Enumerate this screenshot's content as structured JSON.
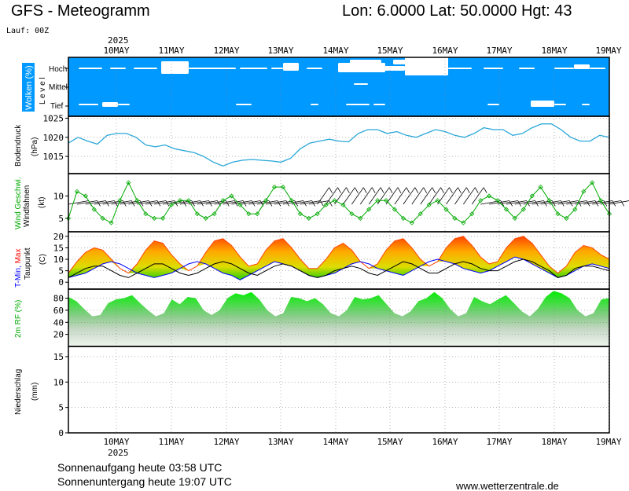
{
  "header": {
    "title": "GFS - Meteogramm",
    "location": "Lon: 6.0000 Lat: 50.0000 Hgt: 43",
    "run": "Lauf: 00Z"
  },
  "footer": {
    "sunrise": "Sonnenaufgang heute 03:58 UTC",
    "sunset": "Sonnenuntergang heute 19:07 UTC",
    "source": "www.wetterzentrale.de"
  },
  "chart_data": [
    {
      "type": "heatmap",
      "panel": "clouds",
      "ylabel": "Wolken (%)",
      "level_label": "L e v e l",
      "levels": [
        "Hoch",
        "Mittel",
        "Tief"
      ],
      "x_labels": [
        "10MAY",
        "11MAY",
        "12MAY",
        "13MAY",
        "14MAY",
        "15MAY",
        "16MAY",
        "17MAY",
        "18MAY",
        "19MAY"
      ],
      "year_label": "2025"
    },
    {
      "type": "line",
      "panel": "pressure",
      "ylabel_lines": [
        "Bodendruck",
        "(hPa)"
      ],
      "yticks": [
        1015,
        1020,
        1025
      ],
      "ylim": [
        1010.5,
        1025.5
      ],
      "series": [
        {
          "values": [
            1018.5,
            1020,
            1019,
            1018.2,
            1020.5,
            1021,
            1021,
            1020,
            1018,
            1017.5,
            1018,
            1017,
            1016.5,
            1016,
            1015,
            1013.5,
            1012.5,
            1013.5,
            1014,
            1014.2,
            1014,
            1013.8,
            1013.5,
            1014.5,
            1017,
            1018.5,
            1019,
            1019.5,
            1019,
            1018.8,
            1021,
            1022,
            1022,
            1021,
            1021.5,
            1020.5,
            1020,
            1021,
            1022,
            1021.5,
            1020.5,
            1020,
            1021,
            1022.5,
            1022,
            1022,
            1020.5,
            1021,
            1022.5,
            1023.5,
            1023.5,
            1022,
            1020,
            1019,
            1019,
            1020.5,
            1020
          ]
        }
      ]
    },
    {
      "type": "line",
      "panel": "wind",
      "ylabel_lines": [
        "Wind Geschwi.",
        "Windfahnen",
        "(kt)"
      ],
      "yticks": [
        5,
        10
      ],
      "ylim": [
        2,
        15
      ],
      "series": [
        {
          "values": [
            5,
            11,
            10,
            7,
            5,
            4,
            9,
            13,
            9,
            6,
            5,
            5,
            8,
            9,
            9,
            6,
            5,
            6,
            9,
            10,
            8,
            6,
            6,
            9,
            12,
            12,
            9,
            6,
            5,
            6,
            8,
            9,
            8,
            6,
            5,
            7,
            9,
            9,
            7,
            5,
            4,
            6,
            8,
            9,
            7,
            5,
            4,
            6,
            9,
            10,
            9,
            7,
            5,
            7,
            10,
            12,
            9,
            6,
            5,
            7,
            11,
            13,
            9,
            6
          ]
        }
      ]
    },
    {
      "type": "area",
      "panel": "temperature",
      "ylabel_lines": [
        "T-Min, Max",
        "Taupunkt",
        "(C)"
      ],
      "yticks": [
        0,
        5,
        10,
        15,
        20
      ],
      "ylim": [
        -3,
        22
      ],
      "series": [
        {
          "values": [
            2,
            3,
            4,
            6,
            8,
            9,
            8,
            6,
            4,
            3,
            2,
            3,
            4,
            6,
            8,
            9,
            8,
            6,
            4,
            3,
            1,
            3,
            5,
            7,
            9,
            8,
            7,
            5,
            3,
            2,
            3,
            4,
            6,
            8,
            9,
            8,
            6,
            5,
            4,
            3,
            5,
            7,
            9,
            10,
            9,
            8,
            6,
            5,
            4,
            5,
            7,
            9,
            11,
            10,
            8,
            6,
            4,
            2,
            3,
            5,
            7,
            8,
            7,
            6
          ]
        },
        {
          "values": [
            4,
            9,
            13,
            15,
            14,
            10,
            6,
            4,
            8,
            14,
            18,
            17,
            12,
            8,
            5,
            7,
            13,
            18,
            19,
            16,
            11,
            7,
            8,
            14,
            18,
            19,
            15,
            10,
            6,
            6,
            10,
            15,
            17,
            14,
            9,
            6,
            8,
            14,
            18,
            19,
            15,
            10,
            7,
            9,
            15,
            19,
            20,
            16,
            11,
            8,
            9,
            15,
            19,
            20,
            17,
            12,
            7,
            4,
            7,
            13,
            16,
            15,
            12,
            10
          ]
        },
        {
          "values": [
            2,
            4,
            6,
            7,
            7,
            5,
            3,
            2,
            4,
            6,
            8,
            8,
            6,
            4,
            3,
            4,
            6,
            8,
            9,
            8,
            6,
            4,
            3,
            5,
            7,
            8,
            7,
            5,
            3,
            2,
            3,
            5,
            6,
            7,
            6,
            4,
            3,
            5,
            7,
            9,
            8,
            6,
            4,
            4,
            6,
            8,
            9,
            8,
            6,
            5,
            5,
            7,
            9,
            10,
            9,
            7,
            5,
            2,
            3,
            6,
            7,
            7,
            6,
            5
          ]
        }
      ]
    },
    {
      "type": "area",
      "panel": "humidity",
      "ylabel": "2m RF (%)",
      "yticks": [
        20,
        40,
        60,
        80
      ],
      "ylim": [
        0,
        95
      ],
      "series": [
        {
          "values": [
            82,
            75,
            62,
            50,
            52,
            72,
            78,
            80,
            85,
            72,
            60,
            50,
            55,
            78,
            70,
            82,
            80,
            60,
            52,
            60,
            80,
            88,
            85,
            90,
            78,
            60,
            50,
            55,
            82,
            80,
            75,
            80,
            70,
            55,
            50,
            60,
            82,
            78,
            80,
            85,
            70,
            55,
            50,
            58,
            75,
            80,
            90,
            80,
            62,
            50,
            55,
            82,
            75,
            70,
            78,
            85,
            72,
            58,
            50,
            62,
            82,
            92,
            88,
            80,
            60,
            50,
            55,
            78,
            80
          ]
        }
      ]
    },
    {
      "type": "bar",
      "panel": "precipitation",
      "ylabel_lines": [
        "Niederschlag",
        "(mm)"
      ],
      "yticks": [
        0,
        5,
        10,
        15
      ],
      "ylim": [
        0,
        17
      ]
    }
  ],
  "colors": {
    "cloud_bg": "#0099ff",
    "cloud": "#ffffff",
    "pressure_line": "#2aa7d8",
    "wind_line": "#00aa00",
    "tmax_band_top": "#ff4400",
    "tmax_band_mid": "#ffcc00",
    "tmin_band": "#00cc00",
    "dewpoint": "#000000",
    "tmin_label": "#0000ff",
    "tmax_label": "#ff0000",
    "humidity_fill": "#00e000",
    "grid": "#888888"
  }
}
